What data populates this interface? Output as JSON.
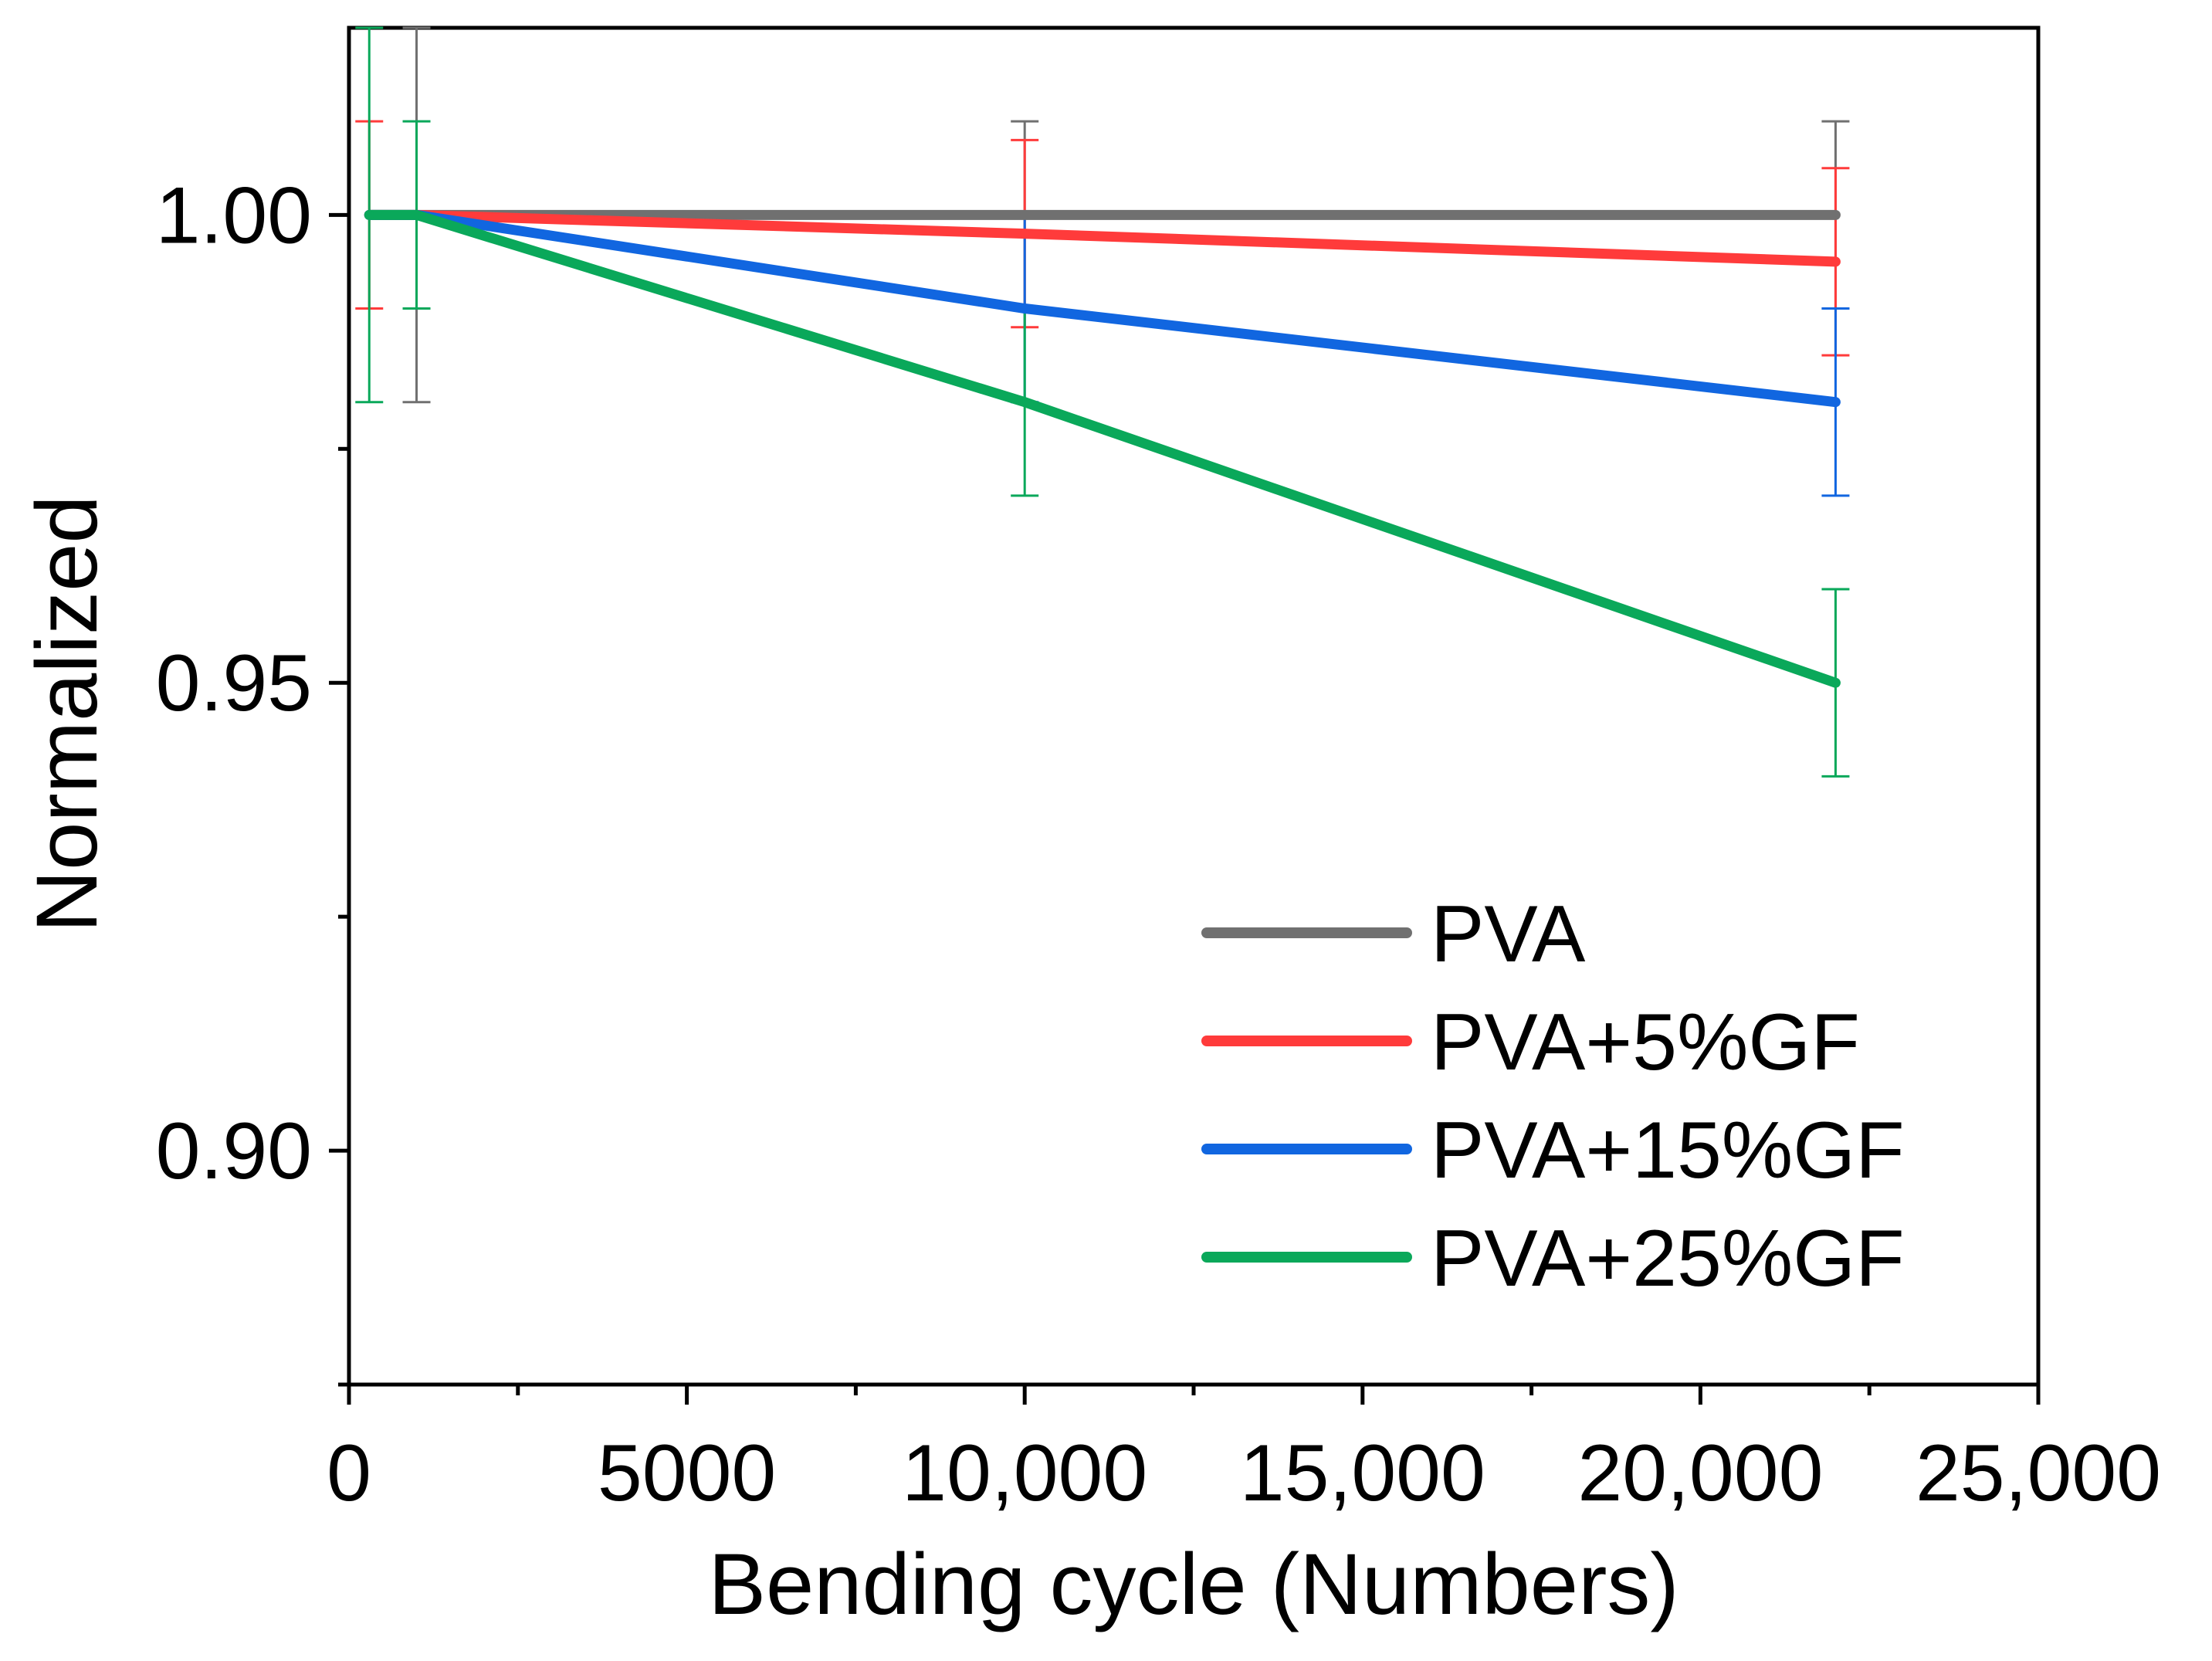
{
  "chart_data": {
    "type": "line",
    "title": "",
    "xlabel": "Bending cycle (Numbers)",
    "ylabel": "Normalized",
    "xlim": [
      0,
      25000
    ],
    "ylim": [
      0.875,
      1.02
    ],
    "x_ticks": [
      0,
      5000,
      10000,
      15000,
      20000,
      25000
    ],
    "x_tick_labels": [
      "0",
      "5000",
      "10,000",
      "15,000",
      "20,000",
      "25,000"
    ],
    "x_minor_ticks": [
      2500,
      7500,
      12500,
      17500,
      22500
    ],
    "y_ticks": [
      0.9,
      0.95,
      1.0
    ],
    "y_tick_labels": [
      "0.90",
      "0.95",
      "1.00"
    ],
    "y_minor_ticks": [
      0.875,
      0.925,
      0.975
    ],
    "grid": false,
    "legend_position": "bottom-right",
    "series": [
      {
        "name": "PVA",
        "color": "#707070",
        "x": [
          300,
          1000,
          10000,
          22000
        ],
        "y": [
          1.0,
          1.0,
          1.0,
          1.0
        ],
        "error": [
          0.0,
          0.02,
          0.01,
          0.01
        ]
      },
      {
        "name": "PVA+5%GF",
        "color": "#ff3b3b",
        "x": [
          300,
          1000,
          10000,
          22000
        ],
        "y": [
          1.0,
          1.0,
          0.998,
          0.995
        ],
        "error": [
          0.01,
          0.0,
          0.01,
          0.01
        ]
      },
      {
        "name": "PVA+15%GF",
        "color": "#1166e0",
        "x": [
          300,
          1000,
          10000,
          22000
        ],
        "y": [
          1.0,
          1.0,
          0.99,
          0.98
        ],
        "error": [
          0.0,
          0.0,
          0.01,
          0.01
        ]
      },
      {
        "name": "PVA+25%GF",
        "color": "#0aa85a",
        "x": [
          300,
          1000,
          10000,
          22000
        ],
        "y": [
          1.0,
          1.0,
          0.98,
          0.95
        ],
        "error": [
          0.02,
          0.01,
          0.01,
          0.01
        ]
      }
    ]
  }
}
